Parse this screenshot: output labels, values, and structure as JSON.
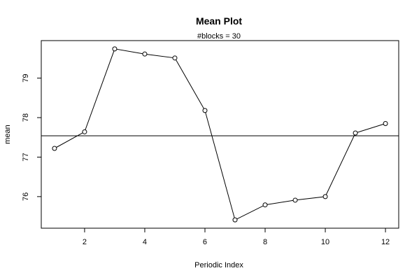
{
  "chart_data": {
    "type": "line",
    "title": "Mean Plot",
    "subtitle": "#blocks =  30",
    "xlabel": "Periodic Index",
    "ylabel": "mean",
    "x": [
      1,
      2,
      3,
      4,
      5,
      6,
      7,
      8,
      9,
      10,
      11,
      12
    ],
    "values": [
      77.22,
      77.64,
      79.74,
      79.61,
      79.51,
      78.18,
      75.41,
      75.79,
      75.91,
      76.0,
      77.61,
      77.85
    ],
    "overall_mean": 77.54,
    "xlim": [
      0.56,
      12.44
    ],
    "ylim": [
      75.2,
      79.95
    ],
    "x_ticks": [
      2,
      4,
      6,
      8,
      10,
      12
    ],
    "y_ticks": [
      76,
      77,
      78,
      79
    ],
    "grid": false,
    "legend": "none"
  }
}
